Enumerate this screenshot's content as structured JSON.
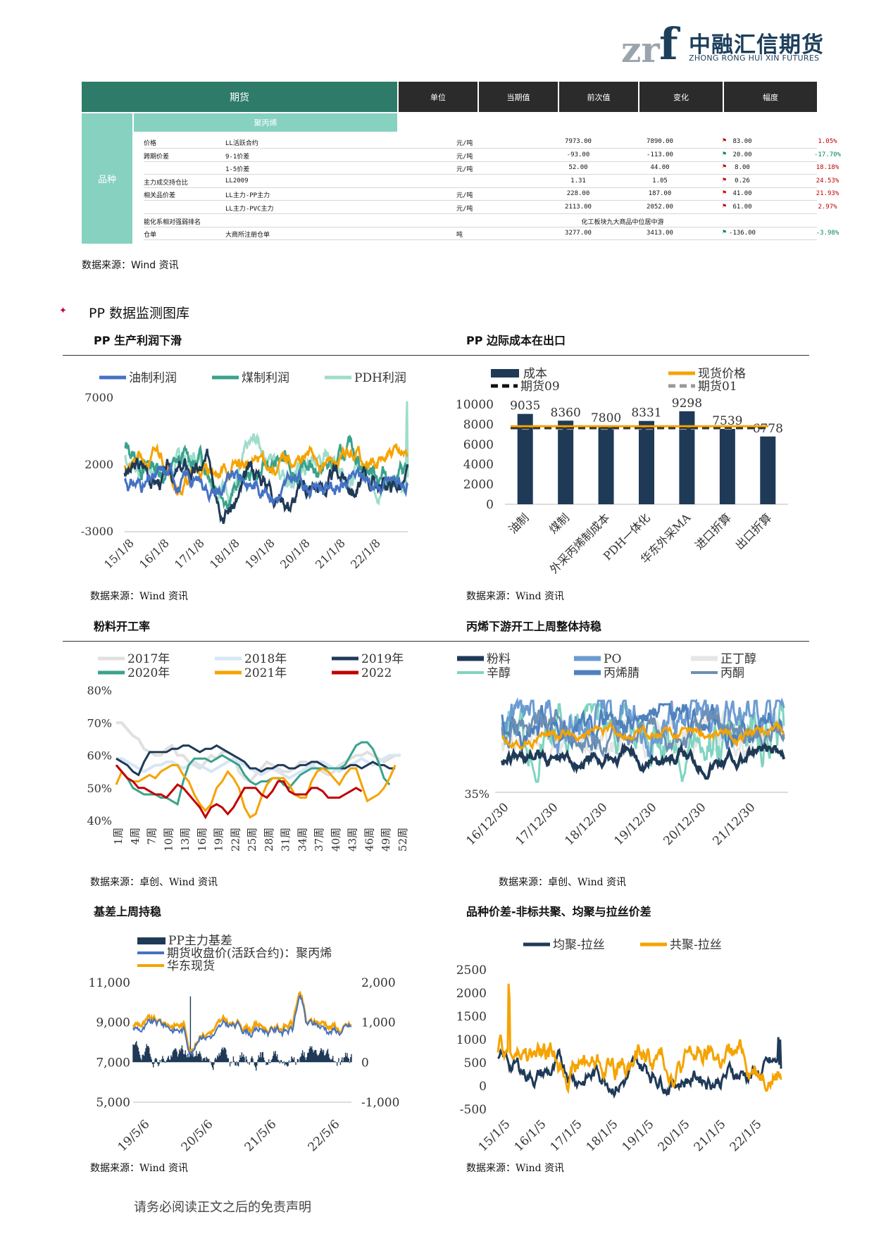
{
  "logo": {
    "cn": "中融汇信期货",
    "en": "ZHONG RONG HUI XIN FUTURES"
  },
  "table": {
    "header": {
      "main": "期货",
      "cols": [
        "单位",
        "当期值",
        "前次值",
        "变化",
        "幅度"
      ]
    },
    "variety_label": "品种",
    "product": "聚丙烯",
    "rows": [
      {
        "cat": "价格",
        "item": "LL活跃合约",
        "unit": "元/吨",
        "cur": "7973.00",
        "prev": "7890.00",
        "chg": "83.00",
        "pct": "1.05%",
        "dir": "up"
      },
      {
        "cat": "跨期价差",
        "item": "9-1价差",
        "unit": "元/吨",
        "cur": "-93.00",
        "prev": "-113.00",
        "chg": "20.00",
        "pct": "-17.70%",
        "dir": "down"
      },
      {
        "cat": "",
        "item": "1-5价差",
        "unit": "元/吨",
        "cur": "52.00",
        "prev": "44.00",
        "chg": "8.00",
        "pct": "18.18%",
        "dir": "up"
      },
      {
        "cat": "主力成交持仓比",
        "item": "LL2009",
        "unit": "",
        "cur": "1.31",
        "prev": "1.05",
        "chg": "0.26",
        "pct": "24.53%",
        "dir": "up"
      },
      {
        "cat": "相关品价差",
        "item": "LL主力-PP主力",
        "unit": "元/吨",
        "cur": "228.00",
        "prev": "187.00",
        "chg": "41.00",
        "pct": "21.93%",
        "dir": "up"
      },
      {
        "cat": "",
        "item": "LL主力-PVC主力",
        "unit": "元/吨",
        "cur": "2113.00",
        "prev": "2052.00",
        "chg": "61.00",
        "pct": "2.97%",
        "dir": "up"
      },
      {
        "cat": "能化系相对强弱排名",
        "item": "",
        "unit": "",
        "cur": "",
        "prev": "化工板块九大商品中位居中游",
        "chg": "",
        "pct": "",
        "dir": ""
      },
      {
        "cat": "仓单",
        "item": "大商所注册仓单",
        "unit": "吨",
        "cur": "3277.00",
        "prev": "3413.00",
        "chg": "-136.00",
        "pct": "-3.98%",
        "dir": "down"
      }
    ]
  },
  "source_main": "数据来源：Wind 资讯",
  "section_title": "PP 数据监测图库",
  "panels": {
    "p1": {
      "title": "PP 生产利润下滑",
      "source": "数据来源：Wind 资讯"
    },
    "p2": {
      "title": "PP 边际成本在出口",
      "source": "数据来源：Wind 资讯"
    },
    "p3": {
      "title": "粉料开工率",
      "source": "数据来源：卓创、Wind 资讯"
    },
    "p4": {
      "title": "丙烯下游开工上周整体持稳",
      "source": "数据来源：卓创、Wind 资讯"
    },
    "p5": {
      "title": "基差上周持稳",
      "source": "数据来源：Wind 资讯"
    },
    "p6": {
      "title": "品种价差-非标共聚、均聚与拉丝价差",
      "source": "数据来源：Wind 资讯"
    }
  },
  "colors": {
    "teal_dark": "#2d7b68",
    "teal_light": "#86d1c0",
    "navy": "#1f3a57",
    "orange": "#f5a300",
    "blue": "#4472c4",
    "red": "#c00000"
  },
  "chart_data": [
    {
      "id": "profit",
      "type": "line",
      "series": [
        {
          "name": "油制利润"
        },
        {
          "name": "煤制利润"
        },
        {
          "name": "PDH利润"
        }
      ],
      "ylim": [
        -3000,
        7000
      ],
      "yticks": [
        "7000",
        "2000",
        "-3000"
      ],
      "x_ticks": [
        "15/1/8",
        "16/1/8",
        "17/1/8",
        "18/1/8",
        "19/1/8",
        "20/1/8",
        "21/1/8",
        "22/1/8"
      ]
    },
    {
      "id": "cost",
      "type": "bar",
      "categories": [
        "油制",
        "煤制",
        "外采丙烯制成本",
        "PDH一体化",
        "华东外采MA",
        "进口折算",
        "出口折算"
      ],
      "values": [
        9035,
        8360,
        7800,
        8331,
        9298,
        7539,
        6778
      ],
      "data_labels": [
        "9035",
        "8360",
        "7800",
        "8331",
        "9298",
        "7539",
        "6778"
      ],
      "ylim": [
        0,
        10000
      ],
      "yticks": [
        "10000",
        "8000",
        "6000",
        "4000",
        "2000",
        "0"
      ],
      "reference": {
        "现货价格": 7800,
        "期货09": 7700,
        "期货01": 7600
      },
      "legend": [
        "成本",
        "现货价格",
        "期货09",
        "期货01"
      ]
    },
    {
      "id": "powder",
      "type": "line",
      "series": [
        {
          "name": "2017年",
          "values": [
            70,
            70,
            68,
            66,
            65,
            62,
            61,
            60,
            60,
            62,
            63,
            60,
            60,
            58,
            57,
            56,
            58,
            60,
            59,
            61,
            61,
            60,
            55,
            53,
            52,
            54,
            56,
            58,
            57,
            56,
            55,
            55,
            56,
            58,
            58,
            57,
            56,
            55,
            54,
            55,
            57,
            58,
            59,
            60,
            60,
            61,
            60,
            59,
            58,
            59,
            60,
            60
          ]
        },
        {
          "name": "2018年",
          "values": [
            59,
            59,
            58,
            57,
            56,
            55,
            56,
            57,
            57,
            58,
            58,
            57,
            56,
            57,
            58,
            57,
            56,
            55,
            56,
            57,
            58,
            59,
            58,
            57,
            56,
            55,
            54,
            55,
            56,
            55,
            54,
            53,
            54,
            55,
            56,
            57,
            58,
            58,
            57,
            56,
            55,
            56,
            57,
            58,
            59,
            58,
            57,
            58,
            59,
            60,
            60,
            60
          ]
        },
        {
          "name": "2019年",
          "values": [
            59,
            58,
            57,
            55,
            54,
            58,
            61,
            61,
            61,
            61,
            62,
            62,
            63,
            63,
            62,
            61,
            62,
            62,
            63,
            62,
            61,
            60,
            59,
            58,
            56,
            56,
            55,
            56,
            56,
            57,
            57,
            56,
            56,
            57,
            57,
            58,
            58,
            57,
            56,
            56,
            56,
            56,
            57,
            57,
            56,
            57,
            58,
            57,
            57,
            56,
            56,
            null
          ]
        },
        {
          "name": "2020年",
          "values": [
            57,
            55,
            53,
            50,
            49,
            48,
            48,
            48,
            47,
            47,
            46,
            45,
            52,
            57,
            59,
            59,
            59,
            58,
            59,
            60,
            59,
            58,
            57,
            54,
            52,
            51,
            52,
            52,
            53,
            53,
            51,
            50,
            52,
            54,
            55,
            56,
            56,
            56,
            56,
            56,
            56,
            57,
            60,
            63,
            64,
            64,
            62,
            58,
            53,
            51,
            null,
            null
          ]
        },
        {
          "name": "2021年",
          "values": [
            51,
            55,
            53,
            52,
            52,
            53,
            54,
            53,
            55,
            56,
            57,
            57,
            54,
            52,
            48,
            45,
            43,
            45,
            50,
            52,
            55,
            53,
            50,
            44,
            41,
            42,
            47,
            51,
            53,
            53,
            53,
            51,
            48,
            47,
            47,
            52,
            55,
            56,
            55,
            53,
            51,
            54,
            56,
            56,
            51,
            46,
            47,
            48,
            50,
            53,
            57,
            null
          ]
        },
        {
          "name": "2022",
          "values": [
            57,
            55,
            53,
            52,
            50,
            50,
            49,
            48,
            48,
            47,
            49,
            51,
            50,
            48,
            46,
            44,
            41,
            44,
            45,
            44,
            42,
            44,
            47,
            50,
            50,
            50,
            48,
            47,
            49,
            52,
            52,
            49,
            48,
            48,
            48,
            50,
            50,
            49,
            47,
            47,
            47,
            48,
            49,
            50,
            49,
            null,
            null,
            null,
            null,
            null,
            null,
            null
          ]
        }
      ],
      "ylim": [
        40,
        80
      ],
      "yticks": [
        "80%",
        "70%",
        "60%",
        "50%",
        "40%"
      ],
      "x_ticks": [
        "1周",
        "4周",
        "7周",
        "10周",
        "13周",
        "16周",
        "19周",
        "22周",
        "25周",
        "28周",
        "31周",
        "34周",
        "37周",
        "40周",
        "43周",
        "46周",
        "49周",
        "52周"
      ]
    },
    {
      "id": "downstream",
      "type": "line",
      "series": [
        {
          "name": "粉料"
        },
        {
          "name": "PO"
        },
        {
          "name": "正丁醇"
        },
        {
          "name": "辛醇"
        },
        {
          "name": "丙烯腈"
        },
        {
          "name": "丙酮"
        }
      ],
      "yticks": [
        "35%"
      ],
      "x_ticks": [
        "16/12/30",
        "17/12/30",
        "18/12/30",
        "19/12/30",
        "20/12/30",
        "21/12/30"
      ]
    },
    {
      "id": "basis",
      "type": "line",
      "series": [
        {
          "name": "PP主力基差"
        },
        {
          "name": "期货收盘价(活跃合约)：聚丙烯"
        },
        {
          "name": "华东现货"
        }
      ],
      "ylim_left": [
        5000,
        11000
      ],
      "yticks_left": [
        "11,000",
        "9,000",
        "7,000",
        "5,000"
      ],
      "ylim_right": [
        -1000,
        2000
      ],
      "yticks_right": [
        "2,000",
        "1,000",
        "0",
        "-1,000"
      ],
      "x_ticks": [
        "19/5/6",
        "20/5/6",
        "21/5/6",
        "22/5/6"
      ]
    },
    {
      "id": "spread",
      "type": "line",
      "series": [
        {
          "name": "均聚-拉丝"
        },
        {
          "name": "共聚-拉丝"
        }
      ],
      "ylim": [
        -500,
        2500
      ],
      "yticks": [
        "2500",
        "2000",
        "1500",
        "1000",
        "500",
        "0",
        "-500"
      ],
      "x_ticks": [
        "15/1/5",
        "16/1/5",
        "17/1/5",
        "18/1/5",
        "19/1/5",
        "20/1/5",
        "21/1/5",
        "22/1/5"
      ]
    }
  ],
  "footer": "请务必阅读正文之后的免责声明"
}
